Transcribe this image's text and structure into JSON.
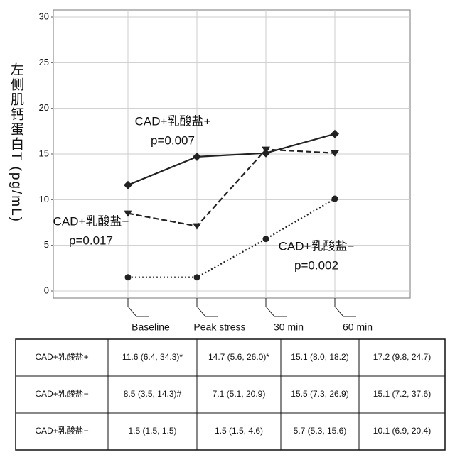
{
  "chart_data": {
    "type": "line",
    "ylabel": "左侧肌钙蛋白T (pg/mL)",
    "categories": [
      "Baseline",
      "Peak stress",
      "30 min",
      "60 min"
    ],
    "series": [
      {
        "name": "CAD+乳酸盐+",
        "color": "#222222",
        "marker": "diamond",
        "dash": "solid",
        "values": [
          11.6,
          14.7,
          15.1,
          17.2
        ]
      },
      {
        "name": "CAD+乳酸盐−",
        "color": "#222222",
        "marker": "triangle",
        "dash": "dashed",
        "values": [
          8.5,
          7.1,
          15.5,
          15.1
        ]
      },
      {
        "name": "CAD+乳酸盐−",
        "color": "#222222",
        "marker": "circle",
        "dash": "dotted",
        "values": [
          1.5,
          1.5,
          5.7,
          10.1
        ]
      }
    ],
    "annotations": [
      [
        "CAD+乳酸盐+",
        "p=0.007"
      ],
      [
        "CAD+乳酸盐−",
        "p=0.017"
      ],
      [
        "CAD+乳酸盐−",
        "p=0.002"
      ]
    ],
    "ylim": [
      0,
      30
    ],
    "yticks": [
      0,
      5,
      10,
      15,
      20,
      25,
      30
    ],
    "grid": true
  },
  "table": {
    "rows": [
      [
        "CAD+乳酸盐+",
        "11.6 (6.4, 34.3)*",
        "14.7 (5.6, 26.0)*",
        "15.1 (8.0, 18.2)",
        "17.2 (9.8, 24.7)"
      ],
      [
        "CAD+乳酸盐−",
        "8.5 (3.5, 14.3)#",
        "7.1 (5.1, 20.9)",
        "15.5 (7.3, 26.9)",
        "15.1 (7.2, 37.6)"
      ],
      [
        "CAD+乳酸盐−",
        "1.5 (1.5, 1.5)",
        "1.5 (1.5, 4.6)",
        "5.7 (5.3, 15.6)",
        "10.1 (6.9, 20.4)"
      ]
    ]
  }
}
